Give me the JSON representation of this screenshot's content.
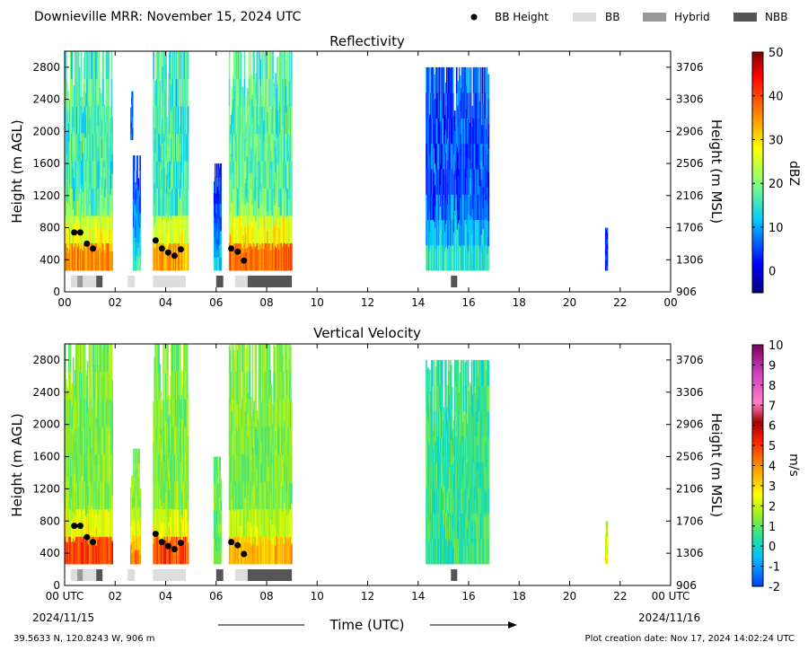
{
  "header": {
    "title": "Downieville MRR:  November 15, 2024 UTC",
    "legend": [
      {
        "label": "BB Height",
        "symbol": "dot",
        "color": "#000000"
      },
      {
        "label": "BB",
        "symbol": "bar",
        "color": "#dddddd"
      },
      {
        "label": "Hybrid",
        "symbol": "bar",
        "color": "#999999"
      },
      {
        "label": "NBB",
        "symbol": "bar",
        "color": "#555555"
      }
    ]
  },
  "footer": {
    "location": "39.5633 N, 120.8243 W, 906 m",
    "created": "Plot creation date: Nov 17, 2024 14:02:24 UTC",
    "xlabel": "Time (UTC)",
    "start_date": "2024/11/15",
    "end_date": "2024/11/16"
  },
  "chart_data": [
    {
      "type": "heatmap",
      "title": "Reflectivity",
      "ylabel": "Height (m AGL)",
      "ylabel_right": "Height (m MSL)",
      "xlim": [
        0,
        24
      ],
      "ylim": [
        0,
        3000
      ],
      "x_ticks": [
        "00",
        "02",
        "04",
        "06",
        "08",
        "10",
        "12",
        "14",
        "16",
        "18",
        "20",
        "22",
        "00"
      ],
      "y_ticks": [
        0,
        400,
        800,
        1200,
        1600,
        2000,
        2400,
        2800
      ],
      "y_ticks_right": [
        "906",
        "1306",
        "1706",
        "2106",
        "2506",
        "2906",
        "3306",
        "3706"
      ],
      "colorbar": {
        "label": "dBZ",
        "min": -5,
        "max": 50,
        "ticks": [
          0,
          10,
          20,
          30,
          40,
          50
        ]
      },
      "echo_regions": [
        {
          "t": [
            0.0,
            1.9
          ],
          "h": [
            270,
            3000
          ],
          "core_dbz": 40
        },
        {
          "t": [
            2.6,
            2.7
          ],
          "h": [
            1900,
            2500
          ],
          "core_dbz": 5
        },
        {
          "t": [
            2.7,
            3.0
          ],
          "h": [
            270,
            1700
          ],
          "core_dbz": 15
        },
        {
          "t": [
            3.5,
            4.9
          ],
          "h": [
            270,
            3000
          ],
          "core_dbz": 38
        },
        {
          "t": [
            5.9,
            6.2
          ],
          "h": [
            270,
            1600
          ],
          "core_dbz": 12
        },
        {
          "t": [
            6.5,
            9.0
          ],
          "h": [
            270,
            3000
          ],
          "core_dbz": 42
        },
        {
          "t": [
            14.3,
            16.8
          ],
          "h": [
            270,
            2800
          ],
          "core_dbz": 15
        },
        {
          "t": [
            21.4,
            21.5
          ],
          "h": [
            270,
            800
          ],
          "core_dbz": 2
        }
      ],
      "bb_height": {
        "t": [
          0.38,
          0.62,
          0.88,
          1.12,
          3.6,
          3.85,
          4.1,
          4.35,
          4.6,
          6.6,
          6.85,
          7.1
        ],
        "h": [
          740,
          740,
          600,
          540,
          640,
          540,
          490,
          450,
          530,
          540,
          500,
          390
        ]
      },
      "bb_type": [
        {
          "t": [
            0.25,
            0.5
          ],
          "kind": "BB"
        },
        {
          "t": [
            0.5,
            0.72
          ],
          "kind": "Hybrid"
        },
        {
          "t": [
            0.72,
            1.25
          ],
          "kind": "BB"
        },
        {
          "t": [
            1.25,
            1.5
          ],
          "kind": "NBB"
        },
        {
          "t": [
            2.5,
            2.78
          ],
          "kind": "BB"
        },
        {
          "t": [
            3.5,
            4.8
          ],
          "kind": "BB"
        },
        {
          "t": [
            6.0,
            6.28
          ],
          "kind": "NBB"
        },
        {
          "t": [
            6.75,
            7.25
          ],
          "kind": "BB"
        },
        {
          "t": [
            7.25,
            9.0
          ],
          "kind": "NBB"
        },
        {
          "t": [
            15.3,
            15.55
          ],
          "kind": "NBB"
        }
      ]
    },
    {
      "type": "heatmap",
      "title": "Vertical Velocity",
      "ylabel": "Height (m AGL)",
      "ylabel_right": "Height (m MSL)",
      "xlim": [
        0,
        24
      ],
      "ylim": [
        0,
        3000
      ],
      "x_ticks": [
        "00 UTC",
        "02",
        "04",
        "06",
        "08",
        "10",
        "12",
        "14",
        "16",
        "18",
        "20",
        "22",
        "00 UTC"
      ],
      "y_ticks": [
        0,
        400,
        800,
        1200,
        1600,
        2000,
        2400,
        2800
      ],
      "y_ticks_right": [
        "906",
        "1306",
        "1706",
        "2106",
        "2506",
        "2906",
        "3306",
        "3706"
      ],
      "colorbar": {
        "label": "m/s",
        "min": -2,
        "max": 10,
        "ticks": [
          -2,
          -1,
          0,
          1,
          2,
          3,
          4,
          5,
          6,
          7,
          8,
          9,
          10
        ]
      },
      "echo_regions": [
        {
          "t": [
            0.0,
            1.9
          ],
          "h": [
            270,
            3000
          ],
          "core_ms": 6.5
        },
        {
          "t": [
            2.6,
            3.0
          ],
          "h": [
            270,
            1700
          ],
          "core_ms": 5
        },
        {
          "t": [
            3.5,
            4.9
          ],
          "h": [
            270,
            3000
          ],
          "core_ms": 6.5
        },
        {
          "t": [
            5.9,
            6.2
          ],
          "h": [
            270,
            1600
          ],
          "core_ms": 1
        },
        {
          "t": [
            6.5,
            9.0
          ],
          "h": [
            270,
            3000
          ],
          "core_ms": 4.5
        },
        {
          "t": [
            14.3,
            16.8
          ],
          "h": [
            270,
            2800
          ],
          "core_ms": 0.5
        },
        {
          "t": [
            21.4,
            21.5
          ],
          "h": [
            270,
            800
          ],
          "core_ms": 3
        }
      ],
      "bb_height": {
        "t": [
          0.38,
          0.62,
          0.88,
          1.12,
          3.6,
          3.85,
          4.1,
          4.35,
          4.6,
          6.6,
          6.85,
          7.1
        ],
        "h": [
          740,
          740,
          600,
          540,
          640,
          540,
          490,
          450,
          530,
          540,
          500,
          390
        ]
      },
      "bb_type": [
        {
          "t": [
            0.25,
            0.5
          ],
          "kind": "BB"
        },
        {
          "t": [
            0.5,
            0.72
          ],
          "kind": "Hybrid"
        },
        {
          "t": [
            0.72,
            1.25
          ],
          "kind": "BB"
        },
        {
          "t": [
            1.25,
            1.5
          ],
          "kind": "NBB"
        },
        {
          "t": [
            2.5,
            2.78
          ],
          "kind": "BB"
        },
        {
          "t": [
            3.5,
            4.8
          ],
          "kind": "BB"
        },
        {
          "t": [
            6.0,
            6.28
          ],
          "kind": "NBB"
        },
        {
          "t": [
            6.75,
            7.25
          ],
          "kind": "BB"
        },
        {
          "t": [
            7.25,
            9.0
          ],
          "kind": "NBB"
        },
        {
          "t": [
            15.3,
            15.55
          ],
          "kind": "NBB"
        }
      ]
    }
  ]
}
